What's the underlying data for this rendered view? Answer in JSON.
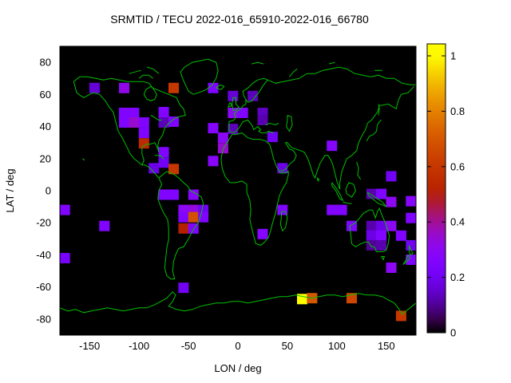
{
  "page": {
    "background": "#ffffff"
  },
  "chart_data": {
    "type": "heatmap",
    "title": "SRMTID / TECU 2022-016_65910-2022-016_66780",
    "xlabel": "LON / deg",
    "ylabel": "LAT / deg",
    "xlim": [
      -180,
      180
    ],
    "ylim": [
      -90,
      90
    ],
    "xticks": [
      -150,
      -100,
      -50,
      0,
      50,
      100,
      150
    ],
    "yticks": [
      -80,
      -60,
      -40,
      -20,
      0,
      20,
      40,
      60,
      80
    ],
    "grid": false,
    "plot_background": "#000000",
    "coastline_color": "#00c000",
    "units": "TECU",
    "marker_px": 13,
    "palette": {
      "name": "gnuplot rgbformulae 7,5,15 (black-violet-red-yellow)",
      "stops": [
        "#000000",
        "#8004ff",
        "#b42000",
        "#c63700",
        "#dd6b00",
        "#ffff00"
      ]
    },
    "colorbar": {
      "position": "right",
      "min": 0,
      "max": 1.04,
      "ticks": [
        0,
        0.2,
        0.4,
        0.6,
        0.8,
        1
      ],
      "tick_labels": [
        "0",
        "0.2",
        "0.4",
        "0.6",
        "0.8",
        "1"
      ]
    },
    "points": [
      {
        "lon": -145,
        "lat": 64,
        "v": 0.16
      },
      {
        "lon": -115,
        "lat": 64,
        "v": 0.32
      },
      {
        "lon": -65,
        "lat": 64,
        "v": 0.6
      },
      {
        "lon": -25,
        "lat": 64,
        "v": 0.25
      },
      {
        "lon": -115,
        "lat": 48.5,
        "v": 0.25
      },
      {
        "lon": -105,
        "lat": 48.5,
        "v": 0.25
      },
      {
        "lon": -75,
        "lat": 49,
        "v": 0.25
      },
      {
        "lon": -115,
        "lat": 42.5,
        "v": 0.25
      },
      {
        "lon": -105,
        "lat": 42.5,
        "v": 0.35
      },
      {
        "lon": -95,
        "lat": 42.5,
        "v": 0.25
      },
      {
        "lon": -75,
        "lat": 42.5,
        "v": 0.13
      },
      {
        "lon": -65,
        "lat": 43,
        "v": 0.25
      },
      {
        "lon": -95,
        "lat": 36,
        "v": 0.25
      },
      {
        "lon": -95,
        "lat": 29.5,
        "v": 0.55
      },
      {
        "lon": -75,
        "lat": 24,
        "v": 0.25
      },
      {
        "lon": -75,
        "lat": 17.5,
        "v": 0.2
      },
      {
        "lon": -85,
        "lat": 14,
        "v": 0.18
      },
      {
        "lon": -65,
        "lat": 13.5,
        "v": 0.6
      },
      {
        "lon": -5,
        "lat": 59,
        "v": 0.16
      },
      {
        "lon": 15,
        "lat": 59,
        "v": 0.13
      },
      {
        "lon": -5,
        "lat": 48.5,
        "v": 0.3
      },
      {
        "lon": 5,
        "lat": 48.5,
        "v": 0.25
      },
      {
        "lon": 25,
        "lat": 48.5,
        "v": 0.14
      },
      {
        "lon": 25,
        "lat": 44,
        "v": 0.12
      },
      {
        "lon": -5,
        "lat": 38.5,
        "v": 0.13
      },
      {
        "lon": -25,
        "lat": 39,
        "v": 0.27
      },
      {
        "lon": -15,
        "lat": 33,
        "v": 0.3
      },
      {
        "lon": -15,
        "lat": 26.5,
        "v": 0.35
      },
      {
        "lon": -25,
        "lat": 18.5,
        "v": 0.28
      },
      {
        "lon": 35,
        "lat": 33.5,
        "v": 0.2
      },
      {
        "lon": 45,
        "lat": 14,
        "v": 0.18
      },
      {
        "lon": 95,
        "lat": 28,
        "v": 0.27
      },
      {
        "lon": 155,
        "lat": 9,
        "v": 0.2
      },
      {
        "lon": -175,
        "lat": -12,
        "v": 0.25
      },
      {
        "lon": -135,
        "lat": -22,
        "v": 0.25
      },
      {
        "lon": -175,
        "lat": -42,
        "v": 0.22
      },
      {
        "lon": -75,
        "lat": -2.5,
        "v": 0.25
      },
      {
        "lon": -65,
        "lat": -2.5,
        "v": 0.25
      },
      {
        "lon": -45,
        "lat": -2.5,
        "v": 0.28
      },
      {
        "lon": -55,
        "lat": -12,
        "v": 0.3
      },
      {
        "lon": -45,
        "lat": -12,
        "v": 0.33
      },
      {
        "lon": -35,
        "lat": -12,
        "v": 0.2
      },
      {
        "lon": -55,
        "lat": -16.5,
        "v": 0.25
      },
      {
        "lon": -45,
        "lat": -16.5,
        "v": 0.68
      },
      {
        "lon": -35,
        "lat": -16.5,
        "v": 0.25
      },
      {
        "lon": -55,
        "lat": -23.5,
        "v": 0.5
      },
      {
        "lon": -45,
        "lat": -23.5,
        "v": 0.25
      },
      {
        "lon": -55,
        "lat": -60.5,
        "v": 0.2
      },
      {
        "lon": 25,
        "lat": -27,
        "v": 0.27
      },
      {
        "lon": 45,
        "lat": -12,
        "v": 0.25
      },
      {
        "lon": 95,
        "lat": -12,
        "v": 0.25
      },
      {
        "lon": 105,
        "lat": -12,
        "v": 0.25
      },
      {
        "lon": 115,
        "lat": -22,
        "v": 0.25
      },
      {
        "lon": 135,
        "lat": -22,
        "v": 0.12
      },
      {
        "lon": 145,
        "lat": -22,
        "v": 0.18
      },
      {
        "lon": 155,
        "lat": -22,
        "v": 0.3
      },
      {
        "lon": 135,
        "lat": -2,
        "v": 0.12
      },
      {
        "lon": 145,
        "lat": -2,
        "v": 0.25
      },
      {
        "lon": 155,
        "lat": -7,
        "v": 0.3
      },
      {
        "lon": 175,
        "lat": -6.5,
        "v": 0.28
      },
      {
        "lon": 175,
        "lat": -17,
        "v": 0.25
      },
      {
        "lon": 135,
        "lat": -28,
        "v": 0.18
      },
      {
        "lon": 145,
        "lat": -28,
        "v": 0.25
      },
      {
        "lon": 165,
        "lat": -28,
        "v": 0.25
      },
      {
        "lon": 135,
        "lat": -34,
        "v": 0.1
      },
      {
        "lon": 145,
        "lat": -34,
        "v": 0.12
      },
      {
        "lon": 175,
        "lat": -34,
        "v": 0.2
      },
      {
        "lon": 175,
        "lat": -43,
        "v": 0.25
      },
      {
        "lon": 155,
        "lat": -48,
        "v": 0.3
      },
      {
        "lon": 65,
        "lat": -67.5,
        "v": 1.0
      },
      {
        "lon": 75,
        "lat": -67,
        "v": 0.7
      },
      {
        "lon": 115,
        "lat": -67,
        "v": 0.65
      },
      {
        "lon": 165,
        "lat": -78,
        "v": 0.6
      }
    ]
  }
}
